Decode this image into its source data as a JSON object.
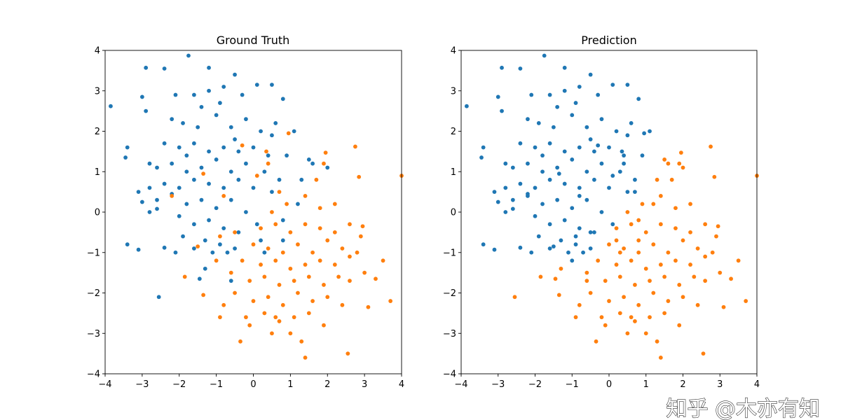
{
  "watermark": "知乎 @木亦有知",
  "chart_data": {
    "type": "scatter",
    "xlim": [
      -4,
      4
    ],
    "ylim": [
      -4,
      4
    ],
    "xticks": [
      -4,
      -3,
      -2,
      -1,
      0,
      1,
      2,
      3,
      4
    ],
    "yticks": [
      -4,
      -3,
      -2,
      -1,
      0,
      1,
      2,
      3,
      4
    ],
    "grid": false,
    "class_colors": [
      "#1f77b4",
      "#ff7f0e"
    ],
    "panels": [
      {
        "title": "Ground Truth",
        "label_column": "ground_truth"
      },
      {
        "title": "Prediction",
        "label_column": "prediction"
      }
    ],
    "columns": [
      "x",
      "y",
      "ground_truth",
      "prediction"
    ],
    "rows": [
      [
        -3.85,
        2.62,
        0,
        0
      ],
      [
        -1.75,
        3.87,
        0,
        0
      ],
      [
        -2.9,
        3.57,
        0,
        0
      ],
      [
        -2.4,
        3.55,
        0,
        0
      ],
      [
        -1.2,
        3.57,
        0,
        0
      ],
      [
        -0.5,
        3.4,
        0,
        0
      ],
      [
        -3.45,
        1.35,
        0,
        0
      ],
      [
        -3.4,
        1.6,
        0,
        0
      ],
      [
        -3.4,
        -0.8,
        0,
        0
      ],
      [
        -3.1,
        -0.93,
        0,
        0
      ],
      [
        -2.55,
        -2.1,
        0,
        1
      ],
      [
        -1.45,
        -1.65,
        0,
        1
      ],
      [
        -1.3,
        -1.4,
        0,
        1
      ],
      [
        -0.6,
        -1.7,
        0,
        1
      ],
      [
        1.1,
        2.0,
        0,
        0
      ],
      [
        2.0,
        1.1,
        0,
        1
      ],
      [
        1.3,
        0.8,
        0,
        1
      ],
      [
        0.8,
        2.8,
        0,
        0
      ],
      [
        0.1,
        3.15,
        0,
        0
      ],
      [
        0.5,
        3.15,
        0,
        0
      ],
      [
        -3.0,
        2.85,
        0,
        0
      ],
      [
        -2.9,
        2.5,
        0,
        0
      ],
      [
        -2.6,
        0.08,
        0,
        0
      ],
      [
        -2.1,
        -1.0,
        0,
        0
      ],
      [
        -2.4,
        -0.88,
        0,
        0
      ],
      [
        -2.2,
        2.3,
        0,
        0
      ],
      [
        -1.9,
        2.2,
        0,
        0
      ],
      [
        -1.5,
        2.1,
        0,
        0
      ],
      [
        -1.0,
        2.4,
        0,
        0
      ],
      [
        -0.6,
        2.1,
        0,
        0
      ],
      [
        -0.2,
        2.3,
        0,
        0
      ],
      [
        0.2,
        2.0,
        0,
        0
      ],
      [
        0.5,
        1.9,
        0,
        0
      ],
      [
        -2.4,
        1.7,
        0,
        0
      ],
      [
        -2.0,
        1.6,
        0,
        0
      ],
      [
        -1.6,
        1.7,
        0,
        0
      ],
      [
        -1.2,
        1.5,
        0,
        0
      ],
      [
        -0.8,
        1.6,
        0,
        0
      ],
      [
        -0.4,
        1.5,
        0,
        0
      ],
      [
        0.0,
        1.6,
        0,
        0
      ],
      [
        0.4,
        1.4,
        0,
        0
      ],
      [
        0.9,
        1.4,
        0,
        0
      ],
      [
        -2.6,
        1.1,
        0,
        0
      ],
      [
        -2.2,
        1.2,
        0,
        0
      ],
      [
        -1.8,
        1.0,
        0,
        0
      ],
      [
        -1.4,
        1.1,
        0,
        0
      ],
      [
        -1.0,
        1.3,
        0,
        0
      ],
      [
        -0.6,
        1.0,
        0,
        0
      ],
      [
        -0.2,
        1.2,
        0,
        0
      ],
      [
        0.3,
        1.0,
        0,
        0
      ],
      [
        0.7,
        0.8,
        0,
        0
      ],
      [
        -2.8,
        0.6,
        0,
        0
      ],
      [
        -2.4,
        0.7,
        0,
        0
      ],
      [
        -2.0,
        0.6,
        0,
        0
      ],
      [
        -1.6,
        0.8,
        0,
        0
      ],
      [
        -1.2,
        0.7,
        0,
        0
      ],
      [
        -0.8,
        0.6,
        0,
        0
      ],
      [
        -0.4,
        0.8,
        0,
        0
      ],
      [
        0.0,
        0.6,
        0,
        0
      ],
      [
        0.5,
        0.5,
        0,
        0
      ],
      [
        -3.0,
        0.25,
        0,
        0
      ],
      [
        -2.6,
        0.3,
        0,
        0
      ],
      [
        -2.2,
        0.45,
        0,
        0
      ],
      [
        -1.8,
        0.2,
        0,
        0
      ],
      [
        -1.4,
        0.3,
        0,
        0
      ],
      [
        -1.0,
        0.1,
        0,
        0
      ],
      [
        -0.6,
        0.3,
        0,
        0
      ],
      [
        -0.2,
        0.0,
        0,
        0
      ],
      [
        -2.0,
        -0.1,
        0,
        0
      ],
      [
        -1.6,
        -0.3,
        0,
        0
      ],
      [
        -1.2,
        -0.2,
        0,
        0
      ],
      [
        -0.8,
        -0.4,
        0,
        0
      ],
      [
        -0.4,
        -0.5,
        0,
        0
      ],
      [
        0.1,
        -0.3,
        0,
        0
      ],
      [
        -1.3,
        -0.7,
        0,
        0
      ],
      [
        -0.9,
        -0.8,
        0,
        0
      ],
      [
        -1.9,
        -0.6,
        0,
        0
      ],
      [
        -0.5,
        -0.9,
        0,
        0
      ],
      [
        0.2,
        -0.7,
        0,
        1
      ],
      [
        0.8,
        -0.2,
        0,
        1
      ],
      [
        -1.6,
        2.9,
        0,
        0
      ],
      [
        -1.2,
        3.0,
        0,
        0
      ],
      [
        -0.8,
        3.1,
        0,
        0
      ],
      [
        -0.3,
        2.9,
        0,
        0
      ],
      [
        -2.1,
        2.9,
        0,
        0
      ],
      [
        -1.4,
        2.6,
        0,
        0
      ],
      [
        -0.9,
        2.7,
        0,
        0
      ],
      [
        -0.5,
        1.8,
        0,
        0
      ],
      [
        0.6,
        2.2,
        0,
        0
      ],
      [
        1.5,
        1.3,
        0,
        1
      ],
      [
        1.6,
        1.2,
        0,
        1
      ],
      [
        1.2,
        0.2,
        0,
        1
      ],
      [
        -1.8,
        1.4,
        0,
        0
      ],
      [
        -2.8,
        1.2,
        0,
        0
      ],
      [
        -3.1,
        0.5,
        0,
        0
      ],
      [
        -2.8,
        0.0,
        0,
        0
      ],
      [
        -1.6,
        -0.9,
        0,
        0
      ],
      [
        -1.1,
        -1.0,
        0,
        0
      ],
      [
        0.8,
        -0.7,
        0,
        1
      ],
      [
        0.3,
        -1.0,
        0,
        1
      ],
      [
        -0.7,
        -1.0,
        0,
        0
      ],
      [
        4.0,
        0.9,
        1,
        1
      ],
      [
        2.75,
        1.62,
        1,
        1
      ],
      [
        2.85,
        0.87,
        1,
        1
      ],
      [
        3.7,
        -2.2,
        1,
        1
      ],
      [
        3.5,
        -1.2,
        1,
        1
      ],
      [
        3.3,
        -1.65,
        1,
        1
      ],
      [
        3.1,
        -2.35,
        1,
        1
      ],
      [
        2.55,
        -3.5,
        1,
        1
      ],
      [
        1.4,
        -3.6,
        1,
        1
      ],
      [
        1.3,
        -3.2,
        1,
        1
      ],
      [
        -0.35,
        -3.2,
        1,
        1
      ],
      [
        -1.85,
        -1.6,
        1,
        1
      ],
      [
        -1.35,
        -2.05,
        1,
        1
      ],
      [
        -0.9,
        -2.6,
        1,
        1
      ],
      [
        -1.5,
        -0.85,
        1,
        0
      ],
      [
        0.95,
        1.95,
        1,
        0
      ],
      [
        -2.2,
        0.4,
        1,
        0
      ],
      [
        1.95,
        1.47,
        1,
        1
      ],
      [
        2.95,
        -0.35,
        1,
        1
      ],
      [
        -1.35,
        0.95,
        1,
        0
      ],
      [
        -0.3,
        1.65,
        1,
        0
      ],
      [
        0.35,
        1.5,
        1,
        0
      ],
      [
        -0.8,
        0.4,
        1,
        0
      ],
      [
        0.5,
        0.0,
        1,
        1
      ],
      [
        0.9,
        0.2,
        1,
        1
      ],
      [
        1.4,
        0.4,
        1,
        1
      ],
      [
        1.8,
        0.1,
        1,
        1
      ],
      [
        2.2,
        0.2,
        1,
        1
      ],
      [
        0.2,
        -0.4,
        1,
        1
      ],
      [
        0.6,
        -0.3,
        1,
        1
      ],
      [
        1.0,
        -0.5,
        1,
        1
      ],
      [
        1.4,
        -0.3,
        1,
        1
      ],
      [
        1.8,
        -0.4,
        1,
        1
      ],
      [
        2.2,
        -0.5,
        1,
        1
      ],
      [
        2.6,
        -0.3,
        1,
        1
      ],
      [
        0.0,
        -0.8,
        1,
        1
      ],
      [
        0.4,
        -0.9,
        1,
        1
      ],
      [
        0.8,
        -1.0,
        1,
        1
      ],
      [
        1.2,
        -0.8,
        1,
        1
      ],
      [
        1.6,
        -1.0,
        1,
        1
      ],
      [
        2.0,
        -0.7,
        1,
        1
      ],
      [
        2.4,
        -0.9,
        1,
        1
      ],
      [
        -0.3,
        -1.2,
        1,
        1
      ],
      [
        0.2,
        -1.3,
        1,
        1
      ],
      [
        0.6,
        -1.2,
        1,
        1
      ],
      [
        1.0,
        -1.4,
        1,
        1
      ],
      [
        1.4,
        -1.3,
        1,
        1
      ],
      [
        1.8,
        -1.2,
        1,
        1
      ],
      [
        2.2,
        -1.3,
        1,
        1
      ],
      [
        2.6,
        -1.1,
        1,
        1
      ],
      [
        -0.1,
        -1.7,
        1,
        1
      ],
      [
        0.3,
        -1.6,
        1,
        1
      ],
      [
        0.7,
        -1.8,
        1,
        1
      ],
      [
        1.1,
        -1.7,
        1,
        1
      ],
      [
        1.5,
        -1.6,
        1,
        1
      ],
      [
        1.9,
        -1.8,
        1,
        1
      ],
      [
        2.3,
        -1.6,
        1,
        1
      ],
      [
        -0.5,
        -2.0,
        1,
        1
      ],
      [
        0.0,
        -2.2,
        1,
        1
      ],
      [
        0.4,
        -2.1,
        1,
        1
      ],
      [
        0.8,
        -2.3,
        1,
        1
      ],
      [
        1.2,
        -2.0,
        1,
        1
      ],
      [
        1.6,
        -2.2,
        1,
        1
      ],
      [
        2.0,
        -2.1,
        1,
        1
      ],
      [
        2.4,
        -2.3,
        1,
        1
      ],
      [
        -0.8,
        -2.3,
        1,
        1
      ],
      [
        -0.2,
        -2.6,
        1,
        1
      ],
      [
        0.3,
        -2.5,
        1,
        1
      ],
      [
        0.7,
        -2.7,
        1,
        1
      ],
      [
        1.1,
        -2.6,
        1,
        1
      ],
      [
        1.5,
        -2.5,
        1,
        1
      ],
      [
        1.9,
        -2.8,
        1,
        1
      ],
      [
        -0.1,
        -2.8,
        1,
        1
      ],
      [
        0.5,
        -3.0,
        1,
        1
      ],
      [
        1.0,
        -3.0,
        1,
        1
      ],
      [
        -0.9,
        -0.6,
        1,
        0
      ],
      [
        -0.6,
        -1.5,
        1,
        1
      ],
      [
        -1.0,
        -1.2,
        1,
        0
      ],
      [
        0.7,
        0.5,
        1,
        0
      ],
      [
        0.4,
        1.2,
        1,
        0
      ],
      [
        0.1,
        0.9,
        1,
        0
      ],
      [
        2.8,
        -1.0,
        1,
        1
      ],
      [
        2.9,
        -0.6,
        1,
        1
      ],
      [
        2.6,
        -1.7,
        1,
        1
      ],
      [
        3.0,
        -1.5,
        1,
        1
      ],
      [
        -0.5,
        -0.5,
        1,
        0
      ],
      [
        1.7,
        0.8,
        1,
        1
      ],
      [
        1.9,
        1.2,
        1,
        1
      ],
      [
        0.6,
        -2.6,
        1,
        1
      ]
    ]
  }
}
